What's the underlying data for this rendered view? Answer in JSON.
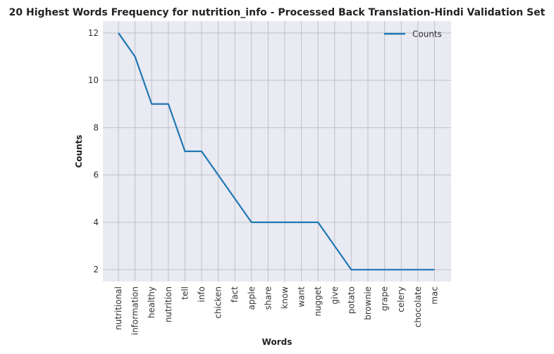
{
  "chart_data": {
    "type": "line",
    "title": "20 Highest Words Frequency for nutrition_info - Processed Back Translation-Hindi Validation Set",
    "xlabel": "Words",
    "ylabel": "Counts",
    "categories": [
      "nutritional",
      "information",
      "healthy",
      "nutrition",
      "tell",
      "info",
      "chicken",
      "fact",
      "apple",
      "share",
      "know",
      "want",
      "nugget",
      "give",
      "potato",
      "brownie",
      "grape",
      "celery",
      "chocolate",
      "mac"
    ],
    "series": [
      {
        "name": "Counts",
        "values": [
          12,
          11,
          9,
          9,
          7,
          7,
          6,
          5,
          4,
          4,
          4,
          4,
          4,
          3,
          2,
          2,
          2,
          2,
          2,
          2
        ]
      }
    ],
    "ylim": [
      1.5,
      12.5
    ],
    "yticks": [
      2,
      4,
      6,
      8,
      10,
      12
    ],
    "grid": true,
    "legend_position": "top-right",
    "colors": {
      "line": "#1f77b4",
      "background": "#eaeaf2",
      "grid": "#c0c0c8"
    }
  }
}
